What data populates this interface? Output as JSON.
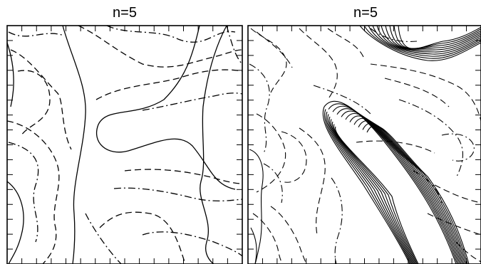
{
  "panels": [
    {
      "title": "n=5",
      "description_style": "smooth contour field"
    },
    {
      "title": "n=5",
      "description_style": "dense contour field with steep diagonal gradient"
    }
  ],
  "line_styles": [
    "solid",
    "dashed",
    "dash-dot"
  ],
  "colors": {
    "ink": "#000000",
    "background": "#ffffff"
  }
}
